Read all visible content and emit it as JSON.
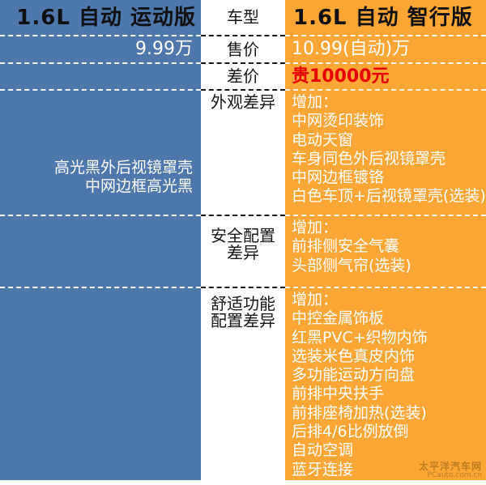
{
  "header": {
    "left_model": "1.6L 自动 运动版",
    "row_label": "车型",
    "right_model": "1.6L 自动 智行版"
  },
  "price_row": {
    "label": "售价",
    "left": "9.99万",
    "right": "10.99(自动)万"
  },
  "diff_row": {
    "label": "差价",
    "right": "贵10000元"
  },
  "appearance_row": {
    "label": "外观差异",
    "left_lines": [
      "高光黑外后视镜罩壳",
      "中网边框高光黑"
    ],
    "right_lines": [
      "增加：",
      "中网烫印装饰",
      "电动天窗",
      "车身同色外后视镜罩壳",
      "中网边框镀铬",
      "白色车顶+后视镜罩壳(选装)"
    ]
  },
  "safety_row": {
    "label_lines": [
      "安全配置",
      "差异"
    ],
    "right_lines": [
      "增加：",
      "前排侧安全气囊",
      "头部侧气帘(选装)"
    ]
  },
  "comfort_row": {
    "label_lines": [
      "舒适功能",
      "配置差异"
    ],
    "right_lines": [
      "增加：",
      "中控金属饰板",
      "红黑PVC+织物内饰",
      "选装米色真皮内饰",
      "多功能运动方向盘",
      "前排中央扶手",
      "前排座椅加热(选装)",
      "后排4/6比例放倒",
      "自动空调",
      "蓝牙连接"
    ]
  },
  "watermark": {
    "line1": "太平洋汽车网",
    "line2": "PCauto.com.cn"
  },
  "colors": {
    "left_column_blue": "#4e77ab",
    "right_column_orange": "#fca636",
    "price_diff_red": "#e60000"
  }
}
